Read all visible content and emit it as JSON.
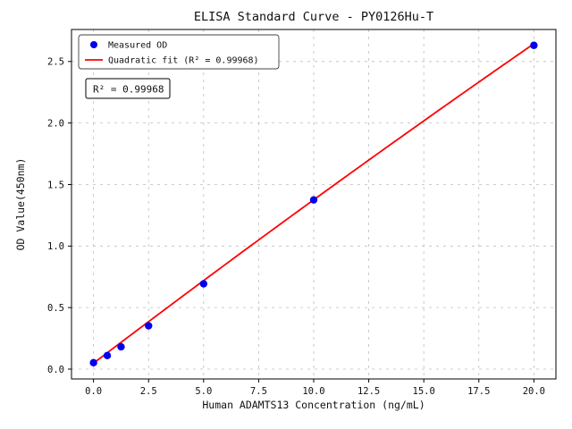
{
  "chart_data": {
    "type": "scatter",
    "title": "ELISA Standard Curve - PY0126Hu-T",
    "xlabel": "Human ADAMTS13 Concentration (ng/mL)",
    "ylabel": "OD Value(450nm)",
    "xlim": [
      -1.0,
      21.0
    ],
    "ylim": [
      -0.08,
      2.76
    ],
    "xtick_values": [
      0.0,
      2.5,
      5.0,
      7.5,
      10.0,
      12.5,
      15.0,
      17.5,
      20.0
    ],
    "xtick_labels": [
      "0.0",
      "2.5",
      "5.0",
      "7.5",
      "10.0",
      "12.5",
      "15.0",
      "17.5",
      "20.0"
    ],
    "ytick_values": [
      0.0,
      0.5,
      1.0,
      1.5,
      2.0,
      2.5
    ],
    "ytick_labels": [
      "0.0",
      "0.5",
      "1.0",
      "1.5",
      "2.0",
      "2.5"
    ],
    "grid": true,
    "grid_color": "#bdbdbd",
    "background": "#ffffff",
    "series": [
      {
        "name": "Measured OD",
        "kind": "scatter",
        "marker": "circle",
        "color": "#0000ee",
        "x": [
          0,
          0.625,
          1.25,
          2.5,
          5,
          10,
          20
        ],
        "y": [
          0.052,
          0.11,
          0.181,
          0.352,
          0.693,
          1.375,
          2.631
        ]
      },
      {
        "name": "Quadratic fit (R² = 0.99968)",
        "kind": "line",
        "color": "#ff0000",
        "poly_coeffs": [
          -0.0003,
          0.1358,
          0.048
        ],
        "x_range": [
          0,
          20
        ]
      }
    ],
    "legend": {
      "position": "upper-left",
      "entries": [
        "Measured OD",
        "Quadratic fit (R² = 0.99968)"
      ]
    },
    "annotation": {
      "text": "R² = 0.99968",
      "r_squared": "0.99968"
    }
  }
}
